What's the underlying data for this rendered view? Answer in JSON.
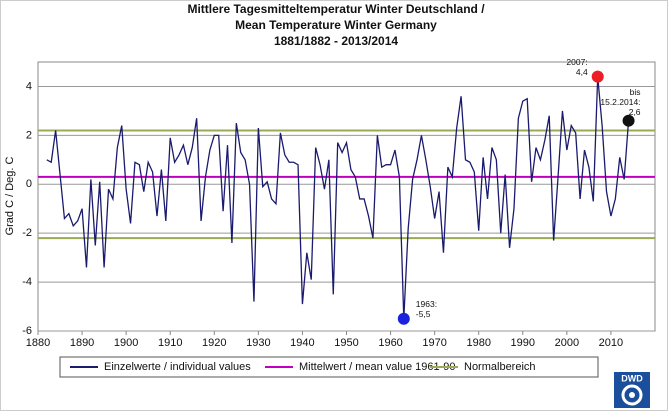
{
  "chart_data": {
    "type": "line",
    "title": [
      "Mittlere Tagesmitteltemperatur Winter  Deutschland /",
      "Mean Temperature Winter  Germany",
      "1881/1882 - 2013/2014"
    ],
    "y_label": "Grad C / Deg. C",
    "x": [
      1882,
      1883,
      1884,
      1885,
      1886,
      1887,
      1888,
      1889,
      1890,
      1891,
      1892,
      1893,
      1894,
      1895,
      1896,
      1897,
      1898,
      1899,
      1900,
      1901,
      1902,
      1903,
      1904,
      1905,
      1906,
      1907,
      1908,
      1909,
      1910,
      1911,
      1912,
      1913,
      1914,
      1915,
      1916,
      1917,
      1918,
      1919,
      1920,
      1921,
      1922,
      1923,
      1924,
      1925,
      1926,
      1927,
      1928,
      1929,
      1930,
      1931,
      1932,
      1933,
      1934,
      1935,
      1936,
      1937,
      1938,
      1939,
      1940,
      1941,
      1942,
      1943,
      1944,
      1945,
      1946,
      1947,
      1948,
      1949,
      1950,
      1951,
      1952,
      1953,
      1954,
      1955,
      1956,
      1957,
      1958,
      1959,
      1960,
      1961,
      1962,
      1963,
      1964,
      1965,
      1966,
      1967,
      1968,
      1969,
      1970,
      1971,
      1972,
      1973,
      1974,
      1975,
      1976,
      1977,
      1978,
      1979,
      1980,
      1981,
      1982,
      1983,
      1984,
      1985,
      1986,
      1987,
      1988,
      1989,
      1990,
      1991,
      1992,
      1993,
      1994,
      1995,
      1996,
      1997,
      1998,
      1999,
      2000,
      2001,
      2002,
      2003,
      2004,
      2005,
      2006,
      2007,
      2008,
      2009,
      2010,
      2011,
      2012,
      2013,
      2014
    ],
    "series": [
      {
        "name": "Einzelwerte / individual values",
        "color": "#1a1a6e",
        "values": [
          1.0,
          0.9,
          2.2,
          0.4,
          -1.4,
          -1.2,
          -1.7,
          -1.5,
          -1.0,
          -3.4,
          0.2,
          -2.5,
          0.1,
          -3.4,
          -0.2,
          -0.6,
          1.5,
          2.4,
          -0.2,
          -1.6,
          0.9,
          0.8,
          -0.3,
          0.9,
          0.5,
          -1.3,
          0.6,
          -1.5,
          1.9,
          0.9,
          1.2,
          1.6,
          0.8,
          1.5,
          2.7,
          -1.5,
          0.3,
          1.4,
          2.0,
          2.0,
          -1.1,
          1.6,
          -2.4,
          2.5,
          1.3,
          1.0,
          0.0,
          -4.8,
          2.3,
          -0.1,
          0.1,
          -0.6,
          -0.8,
          2.1,
          1.2,
          0.9,
          0.9,
          0.8,
          -4.9,
          -2.8,
          -3.9,
          1.5,
          0.8,
          -0.2,
          1.0,
          -4.5,
          1.7,
          1.3,
          1.7,
          0.6,
          0.3,
          -0.6,
          -0.6,
          -1.3,
          -2.2,
          2.0,
          0.7,
          0.8,
          0.8,
          1.4,
          0.3,
          -5.5,
          -1.8,
          0.2,
          1.0,
          2.0,
          1.0,
          -0.1,
          -1.4,
          -0.3,
          -2.8,
          0.7,
          0.3,
          2.3,
          3.6,
          1.0,
          0.9,
          0.5,
          -1.9,
          1.1,
          -0.6,
          1.5,
          1.0,
          -2.0,
          0.4,
          -2.6,
          -1.0,
          2.7,
          3.4,
          3.5,
          0.1,
          1.5,
          1.0,
          1.8,
          2.8,
          -2.3,
          0.3,
          3.0,
          1.4,
          2.4,
          2.1,
          -0.6,
          1.4,
          0.7,
          -0.7,
          4.4,
          2.4,
          -0.3,
          -1.3,
          -0.6,
          1.1,
          0.2,
          2.6
        ]
      }
    ],
    "reference_lines": [
      {
        "name": "Mittelwert / mean value 1961-90",
        "color": "#c000c0",
        "values": [
          0.3
        ]
      },
      {
        "name": "Normalbereich",
        "color": "#9aaa55",
        "values": [
          2.2,
          -2.2
        ]
      }
    ],
    "highlights": [
      {
        "x": 2007,
        "value": 4.4,
        "color": "#ee1c24",
        "label": [
          "2007:",
          "4,4"
        ]
      },
      {
        "x": 2014,
        "value": 2.6,
        "color": "#111111",
        "label": [
          "bis",
          "15.2.2014:",
          "2,6"
        ]
      },
      {
        "x": 1963,
        "value": -5.5,
        "color": "#1a22dd",
        "label": [
          "1963:",
          "-5,5"
        ]
      }
    ],
    "xlim": [
      1880,
      2020
    ],
    "ylim": [
      -6,
      5
    ],
    "xticks": [
      1880,
      1890,
      1900,
      1910,
      1920,
      1930,
      1940,
      1950,
      1960,
      1970,
      1980,
      1990,
      2000,
      2010
    ],
    "yticks": [
      -6,
      -4,
      -2,
      0,
      2,
      4
    ],
    "grid": true
  },
  "logo": {
    "text": "DWD"
  }
}
